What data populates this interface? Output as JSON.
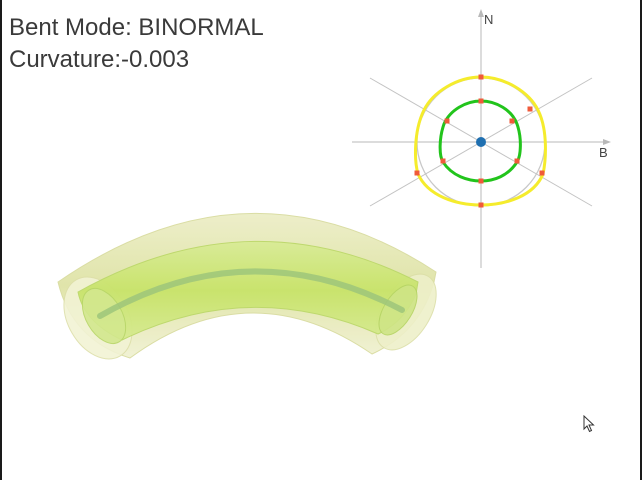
{
  "window": {
    "title": ""
  },
  "status": {
    "bent_mode_prefix": "Bent Mode: ",
    "bent_mode_value": "BINORMAL",
    "curvature_prefix": "Curvature:",
    "curvature_value": "-0.003"
  },
  "cross_section_view": {
    "axis_n_label": "N",
    "axis_b_label": "B"
  },
  "colors": {
    "outer_profile": "#f5ec2c",
    "inner_profile": "#22c41c",
    "control_point": "#f05a3a",
    "center_point": "#1f6fb0",
    "axis_line": "#b9b9b9",
    "reference_circle": "#c8c8c8",
    "tube_outer": "#e6e8b0",
    "tube_inner": "#cfe680",
    "tube_centerline": "#9ec57a"
  },
  "icons": {
    "cursor": "arrow-cursor-icon"
  }
}
